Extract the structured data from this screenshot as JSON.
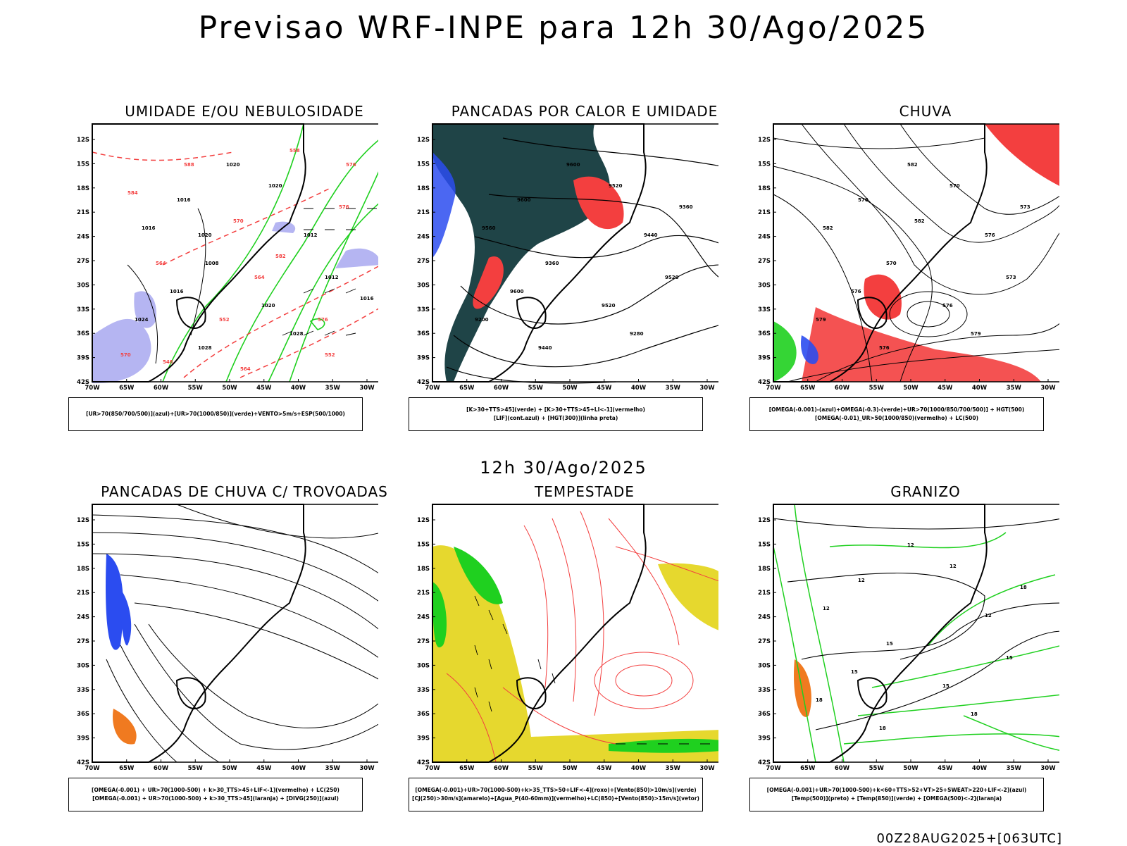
{
  "title": "Previsao WRF-INPE  para 12h 30/Ago/2025",
  "subtitle": "12h 30/Ago/2025",
  "footer": "00Z28AUG2025+[063UTC]",
  "lat_ticks": [
    "12S",
    "15S",
    "18S",
    "21S",
    "24S",
    "27S",
    "30S",
    "33S",
    "36S",
    "39S",
    "42S"
  ],
  "lon_ticks": [
    "70W",
    "65W",
    "60W",
    "55W",
    "50W",
    "45W",
    "40W",
    "35W",
    "30W"
  ],
  "colors": {
    "red": "#f33f3f",
    "blue": "#2b4cf0",
    "green": "#1fd01f",
    "darkteal": "#1f4447",
    "lavender": "#b5b5f2",
    "orange": "#f07a20",
    "yellow": "#e6d82e"
  },
  "panels": [
    {
      "title": "UMIDADE E/OU NEBULOSIDADE",
      "legend": [
        "[UR>70(850/700/500)](azul)+[UR>70(1000/850)](verde)+VENTO>5m/s+ESP(500/1000)"
      ],
      "labels": [
        "1020",
        "1016",
        "1020",
        "1016",
        "1012",
        "1008",
        "1012",
        "1016",
        "1020",
        "1024",
        "1028",
        "1028",
        "576",
        "570",
        "564",
        "582",
        "576",
        "570",
        "564",
        "588",
        "576",
        "584",
        "558",
        "552",
        "546",
        "552",
        "564",
        "1020",
        "1016"
      ]
    },
    {
      "title": "PANCADAS POR CALOR E UMIDADE",
      "legend": [
        "[K>30+TTS>45](verde) + [K>30+TTS>45+LI<-1](vermelho)",
        "[LIF](cont.azul) + [HGT(300)](linha preta)"
      ],
      "labels": [
        "9600",
        "9600",
        "9520",
        "9560",
        "9440",
        "9360",
        "9520",
        "9600",
        "9520",
        "9200",
        "9280",
        "9440",
        "9360"
      ]
    },
    {
      "title": "CHUVA",
      "legend": [
        "[OMEGA(-0.001)-(azul)+OMEGA(-0.3)-(verde)+UR>70(1000/850/700/500)] + HGT(500)",
        "[OMEGA(-0.01)_UR>50(1000/850)(vermelho) + LC(500)"
      ],
      "labels": [
        "582",
        "576",
        "570",
        "582",
        "576",
        "570",
        "573",
        "576",
        "576",
        "579",
        "579",
        "576",
        "573",
        "582"
      ]
    },
    {
      "title": "PANCADAS DE CHUVA C/ TROVOADAS",
      "legend": [
        "[OMEGA(-0.001) + UR>70(1000-500) + k>30_TTS>45+LIF<-1](vermelho) + LC(250)",
        "[OMEGA(-0.001) + UR>70(1000-500) + k>30_TTS>45](laranja) + [DIVG(250)](azul)"
      ],
      "labels": []
    },
    {
      "title": "TEMPESTADE",
      "legend": [
        "[OMEGA(-0.001)+UR>70(1000-500)+k>35_TTS>50+LIF<-4](roxo)+[Vento(850)>10m/s](verde)",
        "[CJ(250)>30m/s](amarelo)+[Agua_P(40-60mm)](vermelho)+LC(850)+[Vento(850)>15m/s](vetor)"
      ],
      "labels": []
    },
    {
      "title": "GRANIZO",
      "legend": [
        "[OMEGA(-0.001)+UR>70(1000-500)+k<60+TTS>52+VT>25+SWEAT>220+LIF<-2](azul)",
        "[Temp(500)](preto) + [Temp(850)](verde) + [OMEGA(500)<-2](laranja)"
      ],
      "labels": [
        "12",
        "12",
        "12",
        "12",
        "12",
        "15",
        "15",
        "15",
        "15",
        "18",
        "18",
        "18",
        "18"
      ]
    }
  ]
}
